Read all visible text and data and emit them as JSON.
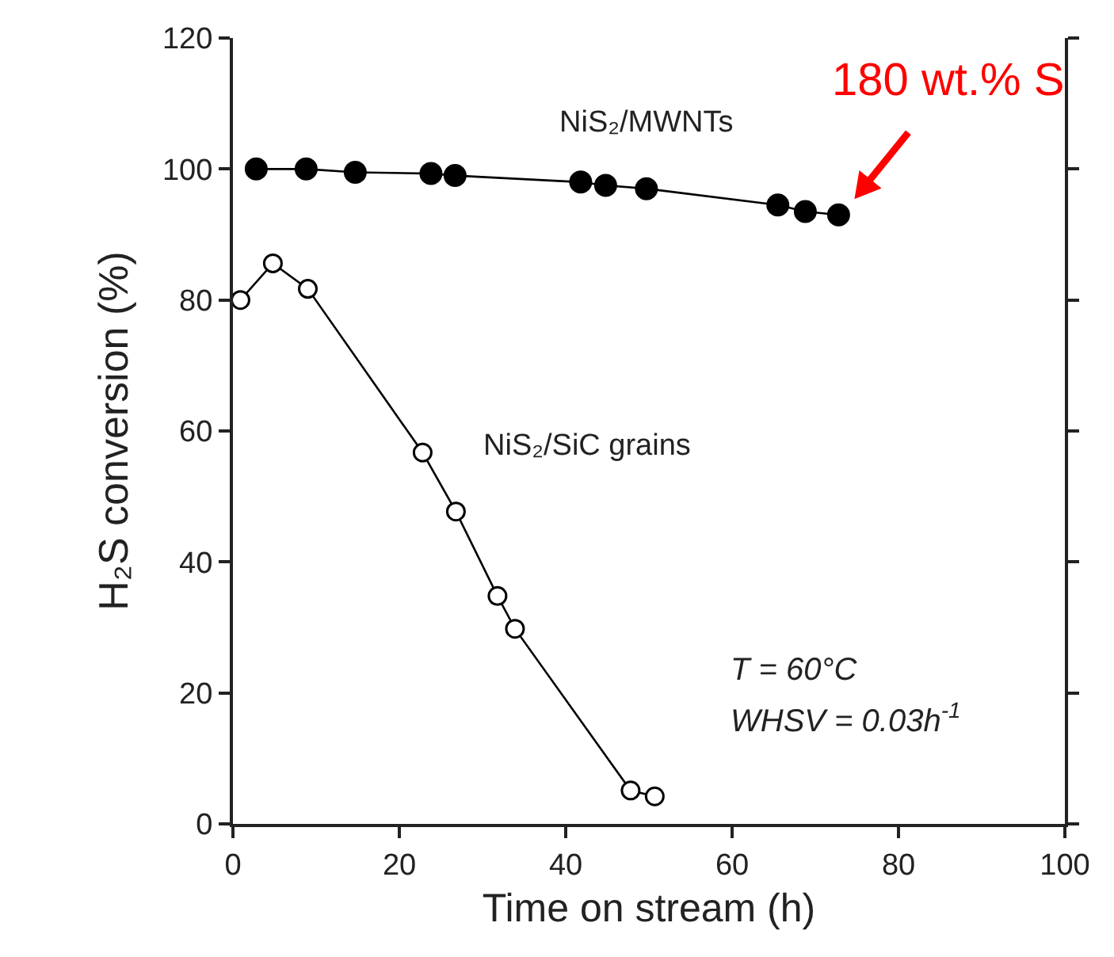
{
  "chart_data": {
    "type": "line",
    "xlabel": "Time on stream (h)",
    "ylabel": "H₂S conversion (%)",
    "xlim": [
      0,
      100
    ],
    "xticks": [
      0,
      20,
      40,
      60,
      80,
      100
    ],
    "ylim": [
      0,
      120
    ],
    "yticks": [
      0,
      20,
      40,
      60,
      80,
      100,
      120
    ],
    "grid": false,
    "legend": false,
    "marker": "circle",
    "line_style": "solid",
    "series": [
      {
        "name": "NiS₂/MWNTs",
        "color": "#000000",
        "x": [
          2.8,
          8.8,
          14.7,
          23.8,
          26.7,
          41.8,
          44.8,
          49.7,
          65.5,
          68.8,
          72.8
        ],
        "values": [
          100,
          100,
          99.5,
          99.3,
          99,
          98,
          97.5,
          97,
          94.5,
          93.5,
          93
        ]
      },
      {
        "name": "NiS₂/SiC grains",
        "color": "#000000",
        "x": [
          0.9,
          4.8,
          9,
          22.8,
          26.8,
          31.8,
          33.9,
          47.8,
          50.7
        ],
        "values": [
          80,
          85.6,
          81.7,
          56.7,
          47.7,
          34.8,
          29.8,
          5.1,
          4.2
        ]
      }
    ],
    "annotations": [
      {
        "text": "180 wt.% S",
        "x": 72.8,
        "y": 93
      },
      "T = 60°C",
      "WHSV = 0.03h$^{-1}$"
    ]
  }
}
